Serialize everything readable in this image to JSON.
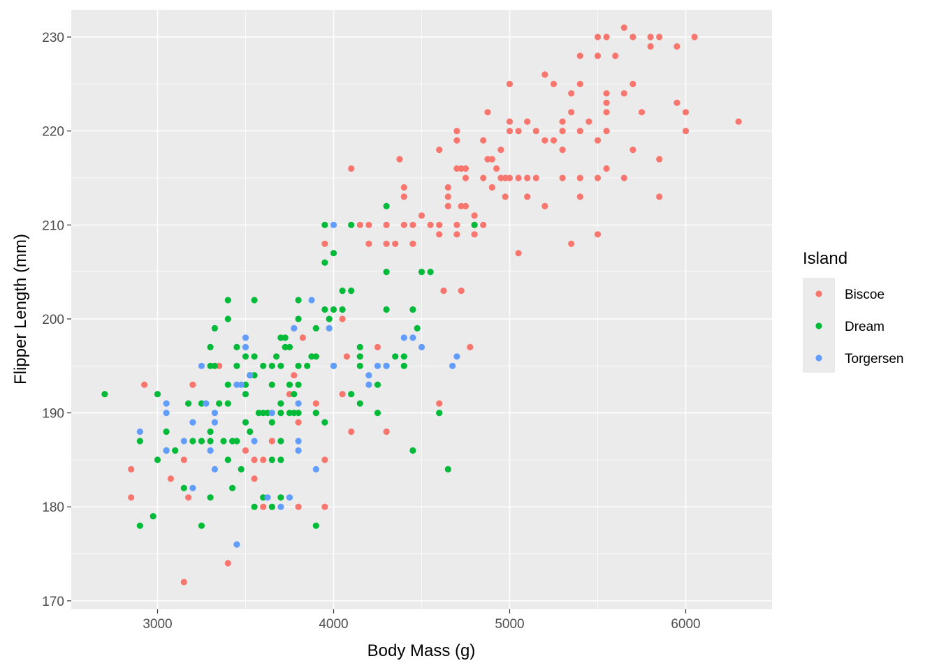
{
  "chart_data": {
    "type": "scatter",
    "title": "",
    "xlabel": "Body Mass (g)",
    "ylabel": "Flipper Length (mm)",
    "xlim": [
      2510,
      6490
    ],
    "ylim": [
      169.1,
      232.9
    ],
    "x_ticks": [
      3000,
      4000,
      5000,
      6000
    ],
    "y_ticks": [
      170,
      180,
      190,
      200,
      210,
      220,
      230
    ],
    "grid": true,
    "legend": {
      "title": "Island",
      "placement": "right"
    },
    "series": [
      {
        "name": "Biscoe",
        "color": "#F8766D",
        "points": [
          [
            2850,
            184
          ],
          [
            2850,
            181
          ],
          [
            2925,
            193
          ],
          [
            3075,
            183
          ],
          [
            3150,
            185
          ],
          [
            3150,
            172
          ],
          [
            3175,
            181
          ],
          [
            3200,
            193
          ],
          [
            3350,
            195
          ],
          [
            3400,
            174
          ],
          [
            3500,
            186
          ],
          [
            3550,
            183
          ],
          [
            3550,
            185
          ],
          [
            3600,
            180
          ],
          [
            3600,
            185
          ],
          [
            3650,
            187
          ],
          [
            3750,
            192
          ],
          [
            3775,
            194
          ],
          [
            3775,
            199
          ],
          [
            3800,
            189
          ],
          [
            3800,
            180
          ],
          [
            3825,
            198
          ],
          [
            3900,
            191
          ],
          [
            3900,
            190
          ],
          [
            3950,
            185
          ],
          [
            3950,
            180
          ],
          [
            3950,
            208
          ],
          [
            4050,
            200
          ],
          [
            4050,
            192
          ],
          [
            4075,
            196
          ],
          [
            4100,
            216
          ],
          [
            4100,
            188
          ],
          [
            4150,
            210
          ],
          [
            4200,
            210
          ],
          [
            4200,
            208
          ],
          [
            4250,
            197
          ],
          [
            4300,
            208
          ],
          [
            4300,
            210
          ],
          [
            4300,
            188
          ],
          [
            4350,
            208
          ],
          [
            4375,
            217
          ],
          [
            4400,
            214
          ],
          [
            4400,
            213
          ],
          [
            4400,
            210
          ],
          [
            4450,
            210
          ],
          [
            4450,
            208
          ],
          [
            4500,
            211
          ],
          [
            4550,
            210
          ],
          [
            4600,
            218
          ],
          [
            4600,
            210
          ],
          [
            4600,
            209
          ],
          [
            4600,
            191
          ],
          [
            4625,
            203
          ],
          [
            4650,
            214
          ],
          [
            4650,
            213
          ],
          [
            4650,
            212
          ],
          [
            4700,
            220
          ],
          [
            4700,
            219
          ],
          [
            4700,
            216
          ],
          [
            4700,
            210
          ],
          [
            4700,
            209
          ],
          [
            4725,
            216
          ],
          [
            4725,
            212
          ],
          [
            4725,
            203
          ],
          [
            4750,
            216
          ],
          [
            4750,
            212
          ],
          [
            4750,
            215
          ],
          [
            4800,
            210
          ],
          [
            4800,
            209
          ],
          [
            4800,
            211
          ],
          [
            4775,
            197
          ],
          [
            4850,
            215
          ],
          [
            4850,
            219
          ],
          [
            4850,
            210
          ],
          [
            4875,
            222
          ],
          [
            4875,
            217
          ],
          [
            4900,
            217
          ],
          [
            4900,
            214
          ],
          [
            4925,
            216
          ],
          [
            4950,
            218
          ],
          [
            4950,
            215
          ],
          [
            4975,
            215
          ],
          [
            4975,
            213
          ],
          [
            5000,
            225
          ],
          [
            5000,
            221
          ],
          [
            5000,
            220
          ],
          [
            5000,
            215
          ],
          [
            5050,
            220
          ],
          [
            5050,
            207
          ],
          [
            5050,
            215
          ],
          [
            5100,
            221
          ],
          [
            5100,
            213
          ],
          [
            5100,
            215
          ],
          [
            5150,
            220
          ],
          [
            5150,
            215
          ],
          [
            5200,
            219
          ],
          [
            5200,
            226
          ],
          [
            5200,
            212
          ],
          [
            5250,
            225
          ],
          [
            5250,
            219
          ],
          [
            5300,
            221
          ],
          [
            5300,
            220
          ],
          [
            5300,
            218
          ],
          [
            5300,
            215
          ],
          [
            5350,
            224
          ],
          [
            5350,
            222
          ],
          [
            5350,
            208
          ],
          [
            5400,
            228
          ],
          [
            5400,
            225
          ],
          [
            5400,
            220
          ],
          [
            5400,
            215
          ],
          [
            5400,
            213
          ],
          [
            5450,
            221
          ],
          [
            5500,
            230
          ],
          [
            5500,
            228
          ],
          [
            5500,
            219
          ],
          [
            5500,
            215
          ],
          [
            5500,
            209
          ],
          [
            5550,
            230
          ],
          [
            5550,
            224
          ],
          [
            5550,
            223
          ],
          [
            5550,
            222
          ],
          [
            5550,
            220
          ],
          [
            5550,
            216
          ],
          [
            5600,
            228
          ],
          [
            5650,
            231
          ],
          [
            5650,
            224
          ],
          [
            5650,
            215
          ],
          [
            5700,
            230
          ],
          [
            5700,
            225
          ],
          [
            5700,
            218
          ],
          [
            5750,
            222
          ],
          [
            5800,
            230
          ],
          [
            5800,
            229
          ],
          [
            5850,
            230
          ],
          [
            5850,
            217
          ],
          [
            5850,
            213
          ],
          [
            5950,
            229
          ],
          [
            5950,
            223
          ],
          [
            6000,
            222
          ],
          [
            6000,
            220
          ],
          [
            6050,
            230
          ],
          [
            6300,
            221
          ]
        ]
      },
      {
        "name": "Dream",
        "color": "#00BA38",
        "points": [
          [
            2700,
            192
          ],
          [
            2900,
            178
          ],
          [
            2900,
            187
          ],
          [
            2975,
            179
          ],
          [
            3000,
            192
          ],
          [
            3000,
            185
          ],
          [
            3050,
            188
          ],
          [
            3050,
            186
          ],
          [
            3100,
            186
          ],
          [
            3150,
            182
          ],
          [
            3175,
            191
          ],
          [
            3200,
            187
          ],
          [
            3250,
            187
          ],
          [
            3250,
            191
          ],
          [
            3250,
            178
          ],
          [
            3300,
            195
          ],
          [
            3300,
            197
          ],
          [
            3300,
            188
          ],
          [
            3300,
            187
          ],
          [
            3300,
            181
          ],
          [
            3325,
            199
          ],
          [
            3325,
            195
          ],
          [
            3350,
            191
          ],
          [
            3375,
            187
          ],
          [
            3400,
            202
          ],
          [
            3400,
            200
          ],
          [
            3400,
            193
          ],
          [
            3400,
            191
          ],
          [
            3400,
            185
          ],
          [
            3425,
            187
          ],
          [
            3425,
            182
          ],
          [
            3450,
            197
          ],
          [
            3450,
            195
          ],
          [
            3450,
            187
          ],
          [
            3475,
            184
          ],
          [
            3500,
            196
          ],
          [
            3500,
            193
          ],
          [
            3500,
            192
          ],
          [
            3500,
            189
          ],
          [
            3525,
            194
          ],
          [
            3525,
            188
          ],
          [
            3550,
            202
          ],
          [
            3550,
            196
          ],
          [
            3550,
            194
          ],
          [
            3550,
            180
          ],
          [
            3575,
            190
          ],
          [
            3600,
            195
          ],
          [
            3600,
            190
          ],
          [
            3600,
            181
          ],
          [
            3625,
            190
          ],
          [
            3650,
            195
          ],
          [
            3650,
            193
          ],
          [
            3650,
            189
          ],
          [
            3650,
            185
          ],
          [
            3650,
            180
          ],
          [
            3675,
            196
          ],
          [
            3700,
            198
          ],
          [
            3700,
            195
          ],
          [
            3700,
            191
          ],
          [
            3700,
            190
          ],
          [
            3700,
            187
          ],
          [
            3700,
            185
          ],
          [
            3700,
            181
          ],
          [
            3725,
            198
          ],
          [
            3725,
            197
          ],
          [
            3750,
            197
          ],
          [
            3750,
            193
          ],
          [
            3750,
            190
          ],
          [
            3775,
            192
          ],
          [
            3775,
            190
          ],
          [
            3800,
            202
          ],
          [
            3800,
            200
          ],
          [
            3800,
            195
          ],
          [
            3800,
            193
          ],
          [
            3800,
            190
          ],
          [
            3850,
            195
          ],
          [
            3875,
            196
          ],
          [
            3900,
            199
          ],
          [
            3900,
            196
          ],
          [
            3900,
            190
          ],
          [
            3900,
            178
          ],
          [
            3950,
            210
          ],
          [
            3950,
            206
          ],
          [
            3950,
            201
          ],
          [
            3950,
            189
          ],
          [
            3975,
            200
          ],
          [
            4000,
            207
          ],
          [
            4000,
            201
          ],
          [
            4000,
            195
          ],
          [
            4050,
            203
          ],
          [
            4050,
            201
          ],
          [
            4100,
            210
          ],
          [
            4100,
            203
          ],
          [
            4100,
            192
          ],
          [
            4150,
            197
          ],
          [
            4150,
            196
          ],
          [
            4150,
            195
          ],
          [
            4150,
            191
          ],
          [
            4250,
            190
          ],
          [
            4250,
            193
          ],
          [
            4300,
            212
          ],
          [
            4300,
            205
          ],
          [
            4300,
            201
          ],
          [
            4300,
            195
          ],
          [
            4350,
            196
          ],
          [
            4400,
            196
          ],
          [
            4400,
            195
          ],
          [
            4450,
            201
          ],
          [
            4450,
            186
          ],
          [
            4475,
            199
          ],
          [
            4500,
            205
          ],
          [
            4550,
            205
          ],
          [
            4600,
            190
          ],
          [
            4650,
            184
          ],
          [
            4800,
            210
          ]
        ]
      },
      {
        "name": "Torgersen",
        "color": "#619CFF",
        "points": [
          [
            2900,
            188
          ],
          [
            3050,
            191
          ],
          [
            3050,
            190
          ],
          [
            3050,
            186
          ],
          [
            3150,
            187
          ],
          [
            3200,
            189
          ],
          [
            3200,
            182
          ],
          [
            3250,
            195
          ],
          [
            3275,
            191
          ],
          [
            3300,
            186
          ],
          [
            3325,
            190
          ],
          [
            3325,
            189
          ],
          [
            3325,
            184
          ],
          [
            3450,
            193
          ],
          [
            3450,
            176
          ],
          [
            3475,
            193
          ],
          [
            3500,
            198
          ],
          [
            3500,
            197
          ],
          [
            3525,
            194
          ],
          [
            3550,
            187
          ],
          [
            3625,
            181
          ],
          [
            3650,
            190
          ],
          [
            3700,
            180
          ],
          [
            3750,
            181
          ],
          [
            3775,
            199
          ],
          [
            3800,
            191
          ],
          [
            3800,
            187
          ],
          [
            3800,
            186
          ],
          [
            3875,
            202
          ],
          [
            3900,
            184
          ],
          [
            3975,
            199
          ],
          [
            4000,
            210
          ],
          [
            4000,
            195
          ],
          [
            4200,
            194
          ],
          [
            4200,
            193
          ],
          [
            4250,
            195
          ],
          [
            4300,
            195
          ],
          [
            4400,
            198
          ],
          [
            4450,
            198
          ],
          [
            4500,
            197
          ],
          [
            4675,
            195
          ],
          [
            4700,
            196
          ]
        ]
      }
    ]
  }
}
